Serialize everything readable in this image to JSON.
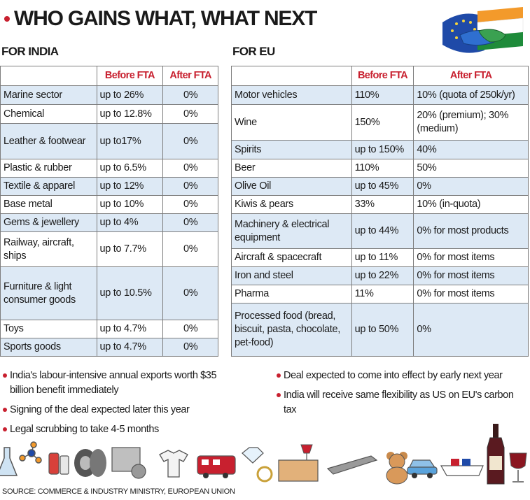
{
  "title": "WHO GAINS WHAT, WHAT NEXT",
  "india": {
    "label": "FOR INDIA",
    "headers": [
      "",
      "Before FTA",
      "After FTA"
    ],
    "rows": [
      {
        "sector": "Marine sector",
        "before": "up to 26%",
        "after": "0%"
      },
      {
        "sector": "Chemical",
        "before": "up to 12.8%",
        "after": "0%"
      },
      {
        "sector": "Leather & footwear",
        "before": "up to17%",
        "after": "0%"
      },
      {
        "sector": "Plastic & rubber",
        "before": "up to 6.5%",
        "after": "0%"
      },
      {
        "sector": "Textile & apparel",
        "before": "up to 12%",
        "after": "0%"
      },
      {
        "sector": "Base metal",
        "before": "up to 10%",
        "after": "0%"
      },
      {
        "sector": "Gems & jewellery",
        "before": "up to 4%",
        "after": "0%"
      },
      {
        "sector": "Railway, aircraft, ships",
        "before": "up to 7.7%",
        "after": "0%"
      },
      {
        "sector": "Furniture & light consumer goods",
        "before": "up to 10.5%",
        "after": "0%"
      },
      {
        "sector": "Toys",
        "before": "up to 4.7%",
        "after": "0%"
      },
      {
        "sector": "Sports goods",
        "before": "up to 4.7%",
        "after": "0%"
      }
    ]
  },
  "eu": {
    "label": "FOR EU",
    "headers": [
      "",
      "Before FTA",
      "After FTA"
    ],
    "rows": [
      {
        "sector": "Motor vehicles",
        "before": "110%",
        "after": "10% (quota of 250k/yr)"
      },
      {
        "sector": "Wine",
        "before": "150%",
        "after": "20% (premium); 30% (medium)"
      },
      {
        "sector": "Spirits",
        "before": "up to 150%",
        "after": "40%"
      },
      {
        "sector": "Beer",
        "before": "110%",
        "after": "50%"
      },
      {
        "sector": "Olive Oil",
        "before": "up to 45%",
        "after": "0%"
      },
      {
        "sector": "Kiwis & pears",
        "before": "33%",
        "after": "10% (in-quota)"
      },
      {
        "sector": "Machinery & electrical equipment",
        "before": "up to 44%",
        "after": "0% for most products"
      },
      {
        "sector": "Aircraft & spacecraft",
        "before": "up to 11%",
        "after": "0% for most items"
      },
      {
        "sector": "Iron and steel",
        "before": "up to 22%",
        "after": "0% for most items"
      },
      {
        "sector": "Pharma",
        "before": "11%",
        "after": "0% for most items"
      },
      {
        "sector": "Processed food (bread, biscuit, pasta, chocolate, pet-food)",
        "before": "up to 50%",
        "after": "0%"
      }
    ]
  },
  "notes_left": [
    "India's labour-intensive annual exports worth $35 billion benefit immediately",
    "Signing of the deal expected later this year",
    "Legal scrubbing to take 4-5 months"
  ],
  "notes_right": [
    "Deal expected to come into effect by early next year",
    "India will receive same flexibility as US on EU's carbon tax"
  ],
  "source": "SOURCE: COMMERCE & INDUSTRY MINISTRY, EUROPEAN UNION",
  "colors": {
    "accent": "#c8202f",
    "row_tint": "#dde9f5",
    "eu_blue": "#1f4aa8",
    "saffron": "#f39a2b",
    "india_green": "#1e8b3a"
  }
}
